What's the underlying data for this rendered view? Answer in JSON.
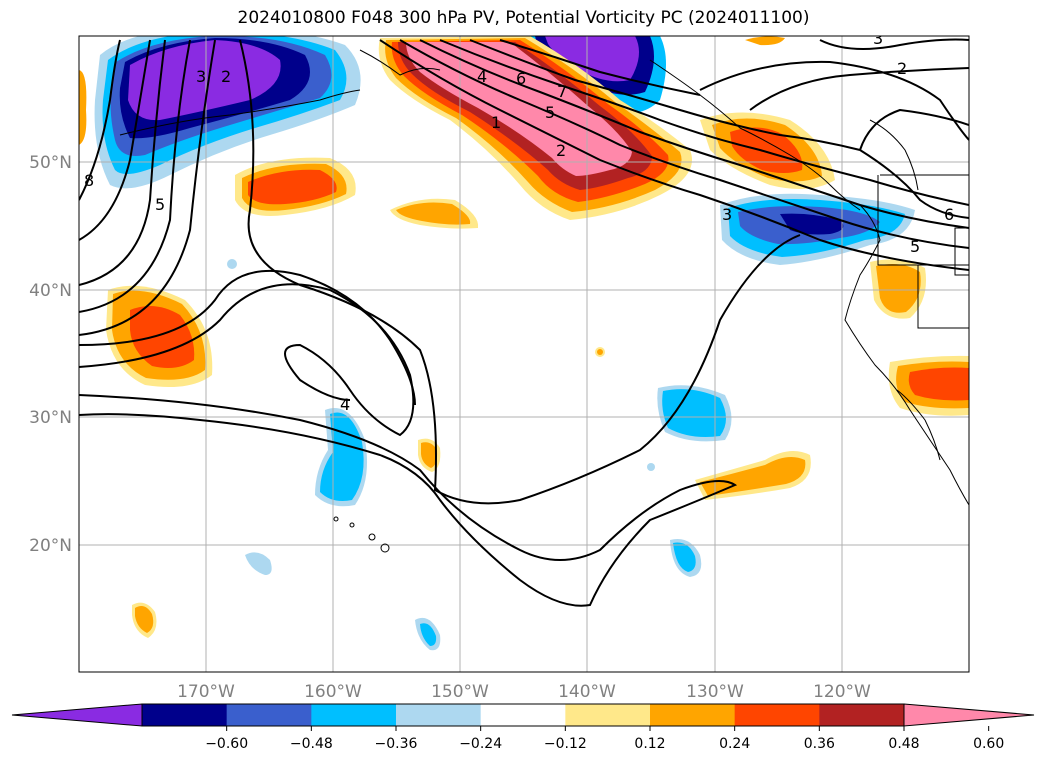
{
  "title": "2024010800 F048 300 hPa PV, Potential Vorticity PC (2024011100)",
  "map": {
    "lon_labels": [
      "170°W",
      "160°W",
      "150°W",
      "140°W",
      "130°W",
      "120°W"
    ],
    "lat_labels": [
      "50°N",
      "40°N",
      "30°N",
      "20°N"
    ],
    "contour_labels": [
      "3",
      "2",
      "4",
      "6",
      "7",
      "5",
      "1",
      "2",
      "3",
      "2",
      "3",
      "6",
      "5",
      "8",
      "5",
      "4"
    ]
  },
  "colorbar": {
    "colors": [
      "#8a2be2",
      "#00008b",
      "#3a5fcd",
      "#00bfff",
      "#add8f0",
      "#ffffff",
      "#ffe88a",
      "#ffa500",
      "#ff4500",
      "#b22222",
      "#ff88aa"
    ],
    "tick_labels": [
      "−0.60",
      "−0.48",
      "−0.36",
      "−0.24",
      "−0.12",
      "0.12",
      "0.24",
      "0.36",
      "0.48",
      "0.60"
    ]
  }
}
